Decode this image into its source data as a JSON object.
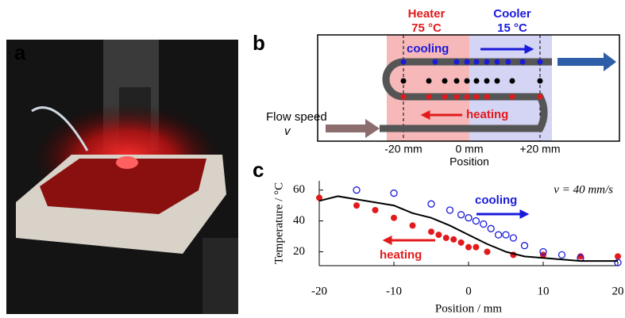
{
  "panels": {
    "a": {
      "label": "a"
    },
    "b": {
      "label": "b",
      "heater": "Heater",
      "heater_temp": "75 °C",
      "cooler": "Cooler",
      "cooler_temp": "15 °C",
      "cooling": "cooling",
      "heating": "heating",
      "flow_speed": "Flow speed",
      "flow_symbol": "v",
      "positions": [
        "-20 mm",
        "0 mm",
        "+20 mm"
      ],
      "position_label": "Position"
    },
    "c": {
      "label": "c"
    }
  },
  "chart_data": {
    "type": "scatter",
    "x_label": "Position / mm",
    "y_label": "Temperature / °C",
    "annotations": {
      "speed": "v = 40 mm/s",
      "cooling": "cooling",
      "heating": "heating"
    },
    "xlim": [
      -20,
      20
    ],
    "xticks": [
      -20,
      -10,
      0,
      10,
      20
    ],
    "ylim": [
      11,
      66
    ],
    "yticks": [
      20,
      40,
      60
    ],
    "series": [
      {
        "marker": "filled",
        "color": "#e31a1c",
        "x": [
          -20,
          -15,
          -12.5,
          -10,
          -7.5,
          -5,
          -4,
          -3,
          -2,
          -1,
          0,
          1,
          2.5,
          6,
          10,
          15,
          20
        ],
        "values": [
          55,
          50,
          47,
          42,
          37,
          33,
          31,
          29,
          28,
          26,
          23,
          23,
          20,
          18,
          18,
          17,
          17
        ]
      },
      {
        "marker": "open",
        "color": "#1a1adb",
        "x": [
          -15,
          -10,
          -5,
          -2.5,
          -1,
          0,
          1,
          2,
          3,
          4,
          5,
          6,
          7.5,
          10,
          12.5,
          15,
          20
        ],
        "values": [
          60,
          58,
          51,
          47,
          44,
          42,
          40,
          38,
          35,
          31,
          31,
          29,
          24,
          20,
          18,
          16,
          13
        ]
      },
      {
        "marker": "line",
        "color": "#000000",
        "x": [
          -20,
          -17.5,
          -15,
          -12.5,
          -10,
          -7.5,
          -5,
          -2.5,
          0,
          2.5,
          5,
          7.5,
          10,
          15,
          20
        ],
        "values": [
          53,
          56,
          54,
          52,
          50,
          45,
          42,
          37,
          31,
          25,
          20,
          17,
          16,
          14,
          14
        ]
      }
    ]
  }
}
